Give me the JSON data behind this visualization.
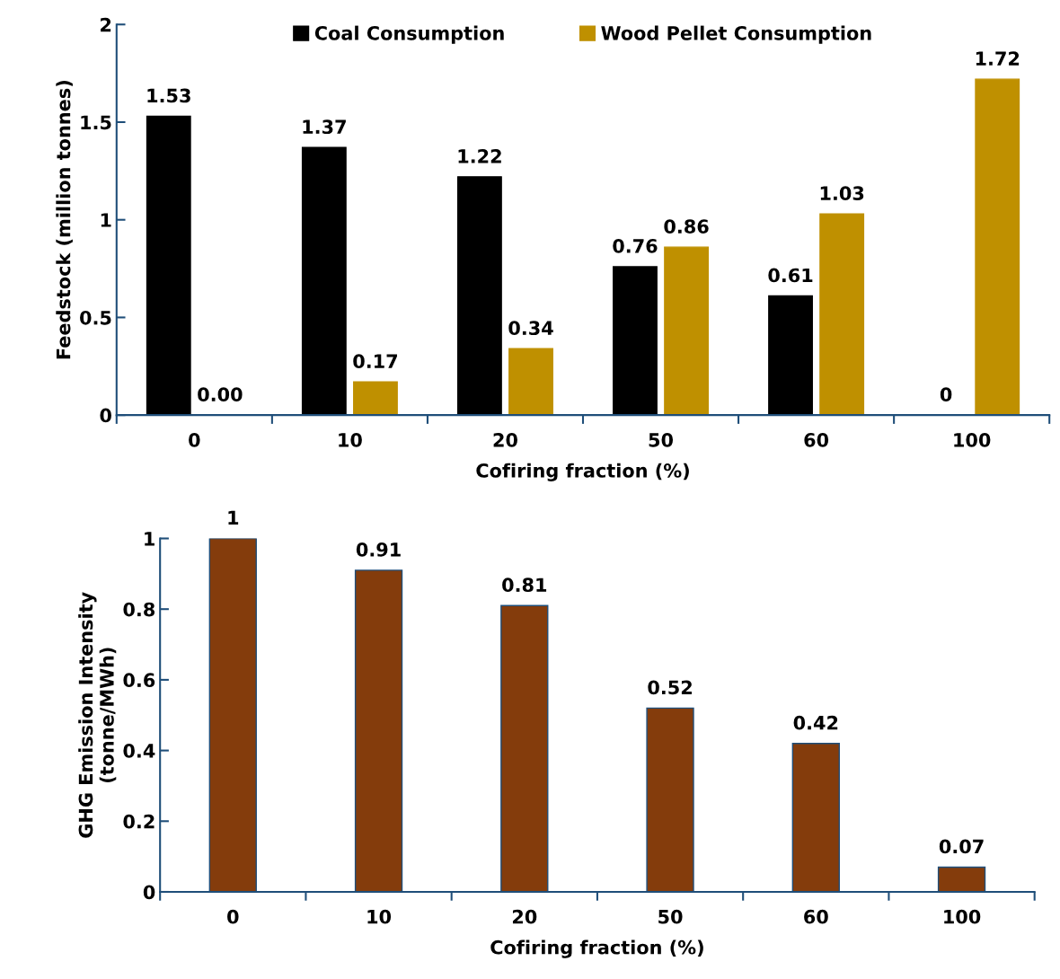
{
  "chart_data": [
    {
      "type": "bar",
      "categories": [
        "0",
        "10",
        "20",
        "50",
        "60",
        "100"
      ],
      "xlabel": "Cofiring fraction (%)",
      "ylabel": "Feedstock (million tonnes)",
      "ylim": [
        0,
        2
      ],
      "yticks": [
        0,
        0.5,
        1,
        1.5,
        2
      ],
      "legend": "top",
      "grid": false,
      "series": [
        {
          "name": "Coal Consumption",
          "color": "#000000",
          "values": [
            1.53,
            1.37,
            1.22,
            0.76,
            0.61,
            0
          ],
          "value_labels": [
            "1.53",
            "1.37",
            "1.22",
            "0.76",
            "0.61",
            "0"
          ]
        },
        {
          "name": "Wood Pellet Consumption",
          "color": "#bf9000",
          "values": [
            0,
            0.17,
            0.34,
            0.86,
            1.03,
            1.72
          ],
          "value_labels": [
            "0.00",
            "0.17",
            "0.34",
            "0.86",
            "1.03",
            "1.72"
          ]
        }
      ]
    },
    {
      "type": "bar",
      "categories": [
        "0",
        "10",
        "20",
        "50",
        "60",
        "100"
      ],
      "xlabel": "Cofiring fraction (%)",
      "ylabel": "GHG Emission Intensity\n(tonne/MWh)",
      "ylim": [
        0,
        1
      ],
      "yticks": [
        0,
        0.2,
        0.4,
        0.6,
        0.8,
        1
      ],
      "grid": false,
      "series": [
        {
          "color": "#843c0c",
          "values": [
            1,
            0.91,
            0.81,
            0.52,
            0.42,
            0.07
          ],
          "value_labels": [
            "1",
            "0.91",
            "0.81",
            "0.52",
            "0.42",
            "0.07"
          ]
        }
      ]
    }
  ]
}
